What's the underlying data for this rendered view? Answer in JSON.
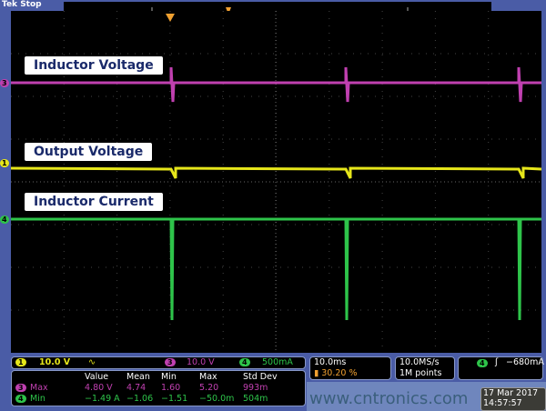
{
  "top": {
    "brand": "Tek",
    "state": "Stop"
  },
  "labels": {
    "inductor_voltage": "Inductor Voltage",
    "output_voltage": "Output Voltage",
    "inductor_current": "Inductor Current"
  },
  "channels": {
    "ch1": {
      "num": "1",
      "scale": "10.0 V",
      "color": "#e6e61a",
      "marker": "1"
    },
    "ch3": {
      "num": "3",
      "scale": "10.0 V",
      "color": "#c040b0",
      "marker": "3"
    },
    "ch4": {
      "num": "4",
      "scale": "500mA",
      "color": "#2ec44a",
      "marker": "4"
    }
  },
  "bw_symbol": "∿",
  "measurements": {
    "headers": [
      "Value",
      "Mean",
      "Min",
      "Max",
      "Std Dev"
    ],
    "rows": [
      {
        "ch": "3",
        "name": "Max",
        "values": [
          "4.80 V",
          "4.74",
          "1.60",
          "5.20",
          "993m"
        ]
      },
      {
        "ch": "4",
        "name": "Min",
        "values": [
          "−1.49 A",
          "−1.06",
          "−1.51",
          "−50.0m",
          "504m"
        ]
      }
    ]
  },
  "timebase": {
    "scale": "10.0ms",
    "position": "30.20 %"
  },
  "acq": {
    "rate": "10.0MS/s",
    "points": "1M points"
  },
  "trigger": {
    "ch": "4",
    "slope": "ʃ",
    "level": "−680mA"
  },
  "datetime": {
    "date": "17 Mar 2017",
    "time": "14:57:57"
  },
  "watermark": "www.cntronics.com"
}
